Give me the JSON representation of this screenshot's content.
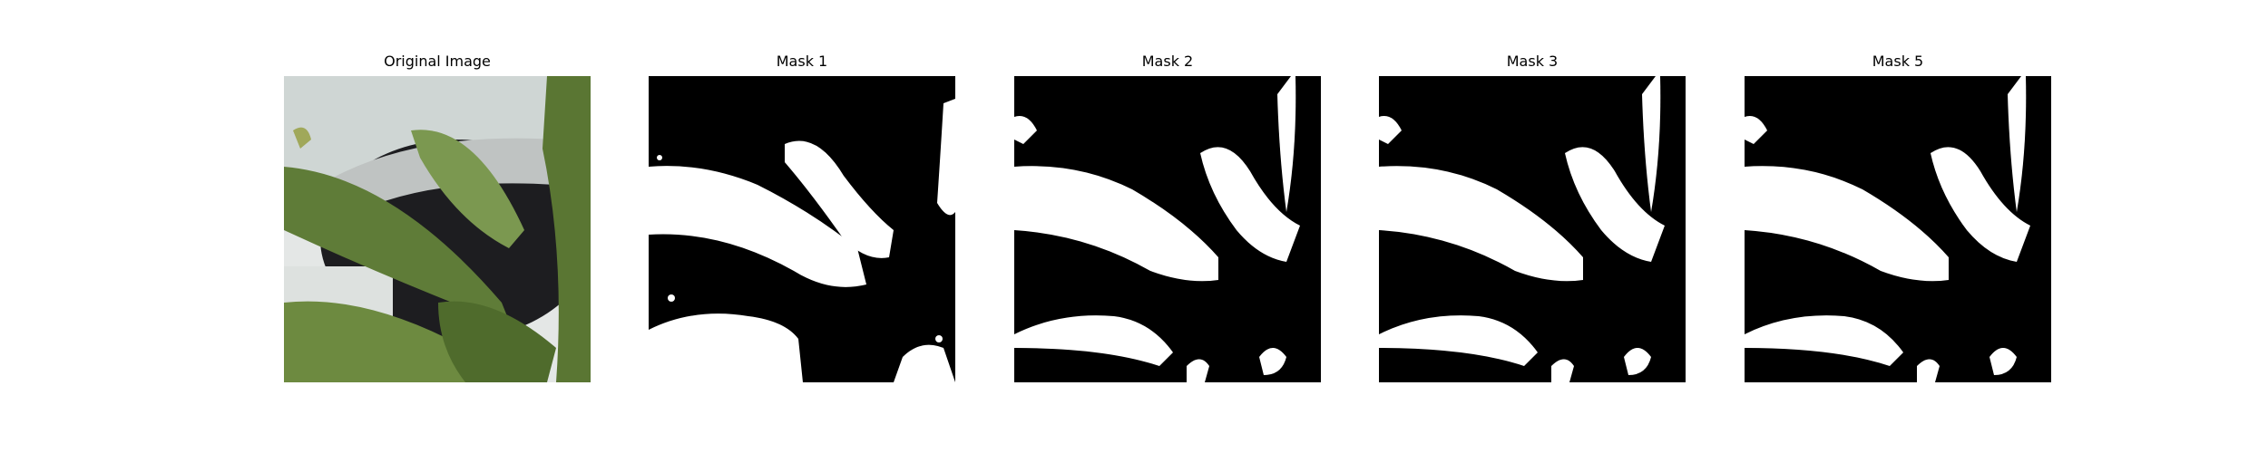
{
  "figure": {
    "panels": [
      {
        "title": "Original Image",
        "kind": "photo"
      },
      {
        "title": "Mask 1",
        "kind": "mask"
      },
      {
        "title": "Mask 2",
        "kind": "mask"
      },
      {
        "title": "Mask 3",
        "kind": "mask"
      },
      {
        "title": "Mask 5",
        "kind": "mask"
      }
    ]
  },
  "colors": {
    "mask_foreground": "#ffffff",
    "mask_background": "#000000",
    "leaf_green": "#5e7a3a",
    "leaf_dark": "#3f5a26",
    "wall": "#dfe3e3",
    "pot": "#1b1b1d"
  }
}
